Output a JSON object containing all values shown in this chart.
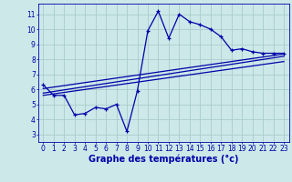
{
  "background_color": "#cce8e8",
  "grid_color": "#aacccc",
  "line_color": "#0000aa",
  "marker_color": "#0000aa",
  "xlabel": "Graphe des températures (°c)",
  "xlabel_fontsize": 7,
  "ytick_labels": [
    "3",
    "4",
    "5",
    "6",
    "7",
    "8",
    "9",
    "10",
    "11"
  ],
  "yticks": [
    3,
    4,
    5,
    6,
    7,
    8,
    9,
    10,
    11
  ],
  "xticks": [
    0,
    1,
    2,
    3,
    4,
    5,
    6,
    7,
    8,
    9,
    10,
    11,
    12,
    13,
    14,
    15,
    16,
    17,
    18,
    19,
    20,
    21,
    22,
    23
  ],
  "xlim": [
    -0.5,
    23.5
  ],
  "ylim": [
    2.5,
    11.7
  ],
  "series1_x": [
    0,
    1,
    2,
    3,
    4,
    5,
    6,
    7,
    8,
    9,
    10,
    11,
    12,
    13,
    14,
    15,
    16,
    17,
    18,
    19,
    20,
    21,
    22,
    23
  ],
  "series1_y": [
    6.3,
    5.6,
    5.6,
    4.3,
    4.4,
    4.8,
    4.7,
    5.0,
    3.2,
    5.9,
    9.9,
    11.2,
    9.4,
    11.0,
    10.5,
    10.3,
    10.0,
    9.5,
    8.6,
    8.7,
    8.5,
    8.4,
    8.4,
    8.4
  ],
  "line1_start_x": 0,
  "line1_start_y": 6.05,
  "line1_end_x": 23,
  "line1_end_y": 8.35,
  "line2_start_x": 0,
  "line2_start_y": 5.75,
  "line2_end_x": 23,
  "line2_end_y": 8.2,
  "line3_start_x": 0,
  "line3_start_y": 5.6,
  "line3_end_x": 23,
  "line3_end_y": 7.85,
  "tick_fontsize": 5.5,
  "linewidth": 0.9,
  "markersize": 3.5
}
